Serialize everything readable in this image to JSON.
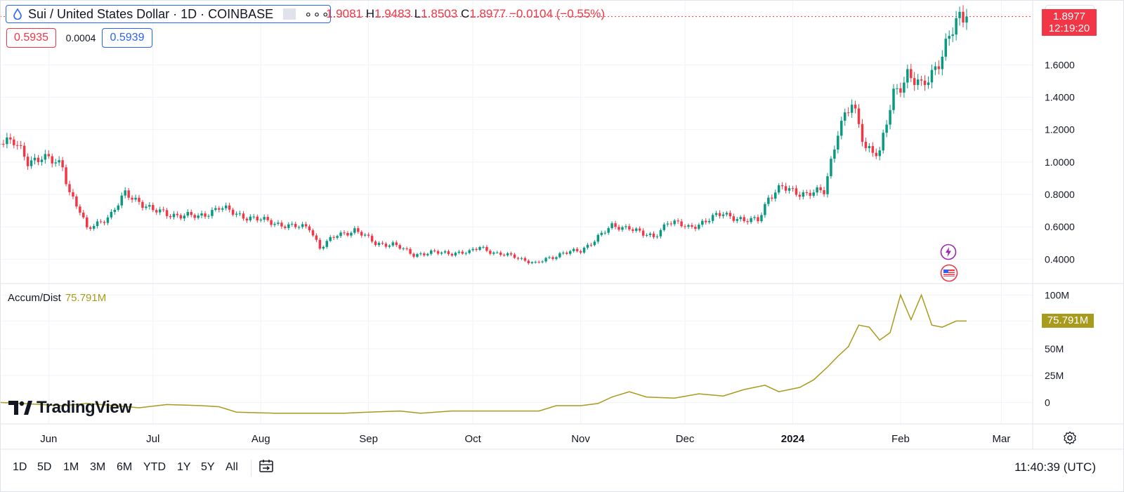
{
  "header": {
    "symbol_title": "Sui / United States Dollar · 1D · COINBASE",
    "ohlc": {
      "o_value": "1.9081",
      "h_label": "H",
      "h_value": "1.9483",
      "l_label": "L",
      "l_value": "1.8503",
      "c_label": "C",
      "c_value": "1.8977",
      "change": "−0.0104 (−0.55%)"
    },
    "bid": "0.5935",
    "spread": "0.0004",
    "ask": "0.5939",
    "currency": "USD",
    "last_price": "1.8977",
    "countdown": "12:19:20"
  },
  "indicator": {
    "name": "Accum/Dist",
    "value": "75.791M",
    "tag": "75.791M"
  },
  "logo_text": "TradingView",
  "toolbar": {
    "ranges": [
      "1D",
      "5D",
      "1M",
      "3M",
      "6M",
      "YTD",
      "1Y",
      "5Y",
      "All"
    ],
    "clock": "11:40:39 (UTC)"
  },
  "colors": {
    "up": "#089981",
    "down": "#f23645",
    "ad_line": "#a89a1b",
    "accent": "#2962ff"
  },
  "icons": [
    "drop-icon",
    "more-icon",
    "goto-date-icon",
    "gear-icon",
    "lightning-icon",
    "us-flag-icon"
  ],
  "chart_data": [
    {
      "type": "candlestick",
      "title": "Sui / United States Dollar · 1D · COINBASE",
      "xlabel": "",
      "ylabel": "",
      "x_ticks": [
        "Jun",
        "Jul",
        "Aug",
        "Sep",
        "Oct",
        "Nov",
        "Dec",
        "2024",
        "Feb",
        "Mar"
      ],
      "y_ticks": [
        "0.4000",
        "0.6000",
        "0.8000",
        "1.0000",
        "1.2000",
        "1.4000",
        "1.6000"
      ],
      "ylim": [
        0.25,
        2.0
      ],
      "x_range": [
        "2023-05-18",
        "2024-03-10"
      ],
      "grid": true,
      "series": [
        {
          "name": "SUI/USD",
          "points": [
            [
              "2023-05-18",
              1.15
            ],
            [
              "2023-05-22",
              1.12
            ],
            [
              "2023-05-26",
              1.0
            ],
            [
              "2023-05-30",
              1.04
            ],
            [
              "2023-06-02",
              1.0
            ],
            [
              "2023-06-05",
              0.97
            ],
            [
              "2023-06-07",
              0.82
            ],
            [
              "2023-06-10",
              0.7
            ],
            [
              "2023-06-12",
              0.58
            ],
            [
              "2023-06-15",
              0.62
            ],
            [
              "2023-06-19",
              0.68
            ],
            [
              "2023-06-23",
              0.8
            ],
            [
              "2023-06-27",
              0.76
            ],
            [
              "2023-07-01",
              0.7
            ],
            [
              "2023-07-05",
              0.68
            ],
            [
              "2023-07-10",
              0.67
            ],
            [
              "2023-07-14",
              0.66
            ],
            [
              "2023-07-18",
              0.7
            ],
            [
              "2023-07-20",
              0.72
            ],
            [
              "2023-07-25",
              0.68
            ],
            [
              "2023-07-30",
              0.65
            ],
            [
              "2023-08-04",
              0.63
            ],
            [
              "2023-08-10",
              0.6
            ],
            [
              "2023-08-15",
              0.6
            ],
            [
              "2023-08-18",
              0.47
            ],
            [
              "2023-08-23",
              0.55
            ],
            [
              "2023-08-28",
              0.58
            ],
            [
              "2023-09-03",
              0.5
            ],
            [
              "2023-09-08",
              0.49
            ],
            [
              "2023-09-14",
              0.43
            ],
            [
              "2023-09-20",
              0.44
            ],
            [
              "2023-09-25",
              0.44
            ],
            [
              "2023-09-30",
              0.44
            ],
            [
              "2023-10-03",
              0.48
            ],
            [
              "2023-10-08",
              0.43
            ],
            [
              "2023-10-13",
              0.42
            ],
            [
              "2023-10-19",
              0.37
            ],
            [
              "2023-10-22",
              0.4
            ],
            [
              "2023-10-27",
              0.44
            ],
            [
              "2023-11-01",
              0.45
            ],
            [
              "2023-11-06",
              0.54
            ],
            [
              "2023-11-10",
              0.6
            ],
            [
              "2023-11-15",
              0.6
            ],
            [
              "2023-11-19",
              0.55
            ],
            [
              "2023-11-22",
              0.54
            ],
            [
              "2023-11-26",
              0.63
            ],
            [
              "2023-12-02",
              0.6
            ],
            [
              "2023-12-07",
              0.63
            ],
            [
              "2023-12-12",
              0.69
            ],
            [
              "2023-12-18",
              0.63
            ],
            [
              "2023-12-22",
              0.65
            ],
            [
              "2023-12-25",
              0.78
            ],
            [
              "2023-12-29",
              0.84
            ],
            [
              "2024-01-02",
              0.82
            ],
            [
              "2024-01-05",
              0.8
            ],
            [
              "2024-01-10",
              0.82
            ],
            [
              "2024-01-14",
              1.2
            ],
            [
              "2024-01-18",
              1.35
            ],
            [
              "2024-01-22",
              1.1
            ],
            [
              "2024-01-26",
              1.05
            ],
            [
              "2024-01-30",
              1.42
            ],
            [
              "2024-02-03",
              1.55
            ],
            [
              "2024-02-07",
              1.45
            ],
            [
              "2024-02-10",
              1.55
            ],
            [
              "2024-02-14",
              1.72
            ],
            [
              "2024-02-17",
              1.85
            ],
            [
              "2024-02-20",
              1.8977
            ]
          ]
        }
      ]
    },
    {
      "type": "line",
      "title": "Accum/Dist",
      "xlabel": "",
      "ylabel": "",
      "y_ticks": [
        "0",
        "25M",
        "50M",
        "100M"
      ],
      "ylim": [
        -20,
        110
      ],
      "grid": true,
      "series": [
        {
          "name": "Accum/Dist",
          "points": [
            [
              "2023-05-18",
              0
            ],
            [
              "2023-05-30",
              -2
            ],
            [
              "2023-06-05",
              -3
            ],
            [
              "2023-06-12",
              -1
            ],
            [
              "2023-06-20",
              -3
            ],
            [
              "2023-06-27",
              -5
            ],
            [
              "2023-07-05",
              -2
            ],
            [
              "2023-07-15",
              -3
            ],
            [
              "2023-07-20",
              -4
            ],
            [
              "2023-07-25",
              -9
            ],
            [
              "2023-08-05",
              -10
            ],
            [
              "2023-08-15",
              -10
            ],
            [
              "2023-08-25",
              -10
            ],
            [
              "2023-09-01",
              -9
            ],
            [
              "2023-09-10",
              -8
            ],
            [
              "2023-09-16",
              -10
            ],
            [
              "2023-09-25",
              -8
            ],
            [
              "2023-10-05",
              -8
            ],
            [
              "2023-10-12",
              -8
            ],
            [
              "2023-10-20",
              -8
            ],
            [
              "2023-10-25",
              -3
            ],
            [
              "2023-11-01",
              -3
            ],
            [
              "2023-11-06",
              -1
            ],
            [
              "2023-11-10",
              5
            ],
            [
              "2023-11-15",
              10
            ],
            [
              "2023-11-20",
              5
            ],
            [
              "2023-11-28",
              4
            ],
            [
              "2023-12-05",
              8
            ],
            [
              "2023-12-12",
              6
            ],
            [
              "2023-12-18",
              12
            ],
            [
              "2023-12-24",
              16
            ],
            [
              "2023-12-28",
              10
            ],
            [
              "2024-01-03",
              14
            ],
            [
              "2024-01-07",
              21
            ],
            [
              "2024-01-11",
              33
            ],
            [
              "2024-01-14",
              43
            ],
            [
              "2024-01-17",
              52
            ],
            [
              "2024-01-20",
              72
            ],
            [
              "2024-01-23",
              70
            ],
            [
              "2024-01-26",
              58
            ],
            [
              "2024-01-29",
              65
            ],
            [
              "2024-02-01",
              100
            ],
            [
              "2024-02-04",
              77
            ],
            [
              "2024-02-07",
              100
            ],
            [
              "2024-02-10",
              72
            ],
            [
              "2024-02-13",
              70
            ],
            [
              "2024-02-17",
              75.791
            ],
            [
              "2024-02-20",
              75.791
            ]
          ]
        }
      ]
    }
  ]
}
